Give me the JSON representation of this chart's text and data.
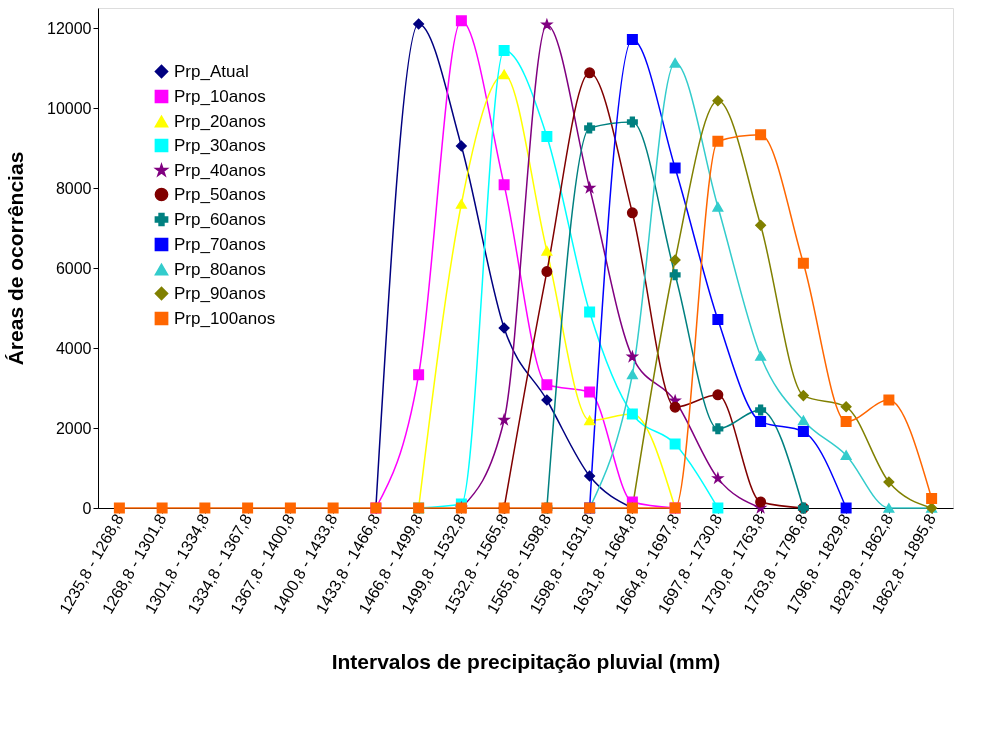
{
  "chart_data": {
    "type": "line",
    "xlabel": "Intervalos de precipitação pluvial (mm)",
    "ylabel": "Áreas de ocorrências",
    "categories": [
      "1235,8 - 1268,8",
      "1268,8 - 1301,8",
      "1301,8 - 1334,8",
      "1334,8 - 1367,8",
      "1367,8 - 1400,8",
      "1400,8 - 1433,8",
      "1433,8 - 1466,8",
      "1466,8 - 1499,8",
      "1499,8 - 1532,8",
      "1532,8 - 1565,8",
      "1565,8 - 1598,8",
      "1598,8 - 1631,8",
      "1631,8 - 1664,8",
      "1664,8 - 1697,8",
      "1697,8 - 1730,8",
      "1730,8 - 1763,8",
      "1763,8 - 1796,8",
      "1796,8 - 1829,8",
      "1829,8 - 1862,8",
      "1862,8 - 1895,8"
    ],
    "ylim": [
      0,
      12500
    ],
    "yticks": [
      0,
      2000,
      4000,
      6000,
      8000,
      10000,
      12000
    ],
    "grid": false,
    "legend": "top left",
    "line_style": "solid",
    "series": [
      {
        "name": "Prp_Atual",
        "color": "#000080",
        "marker": "diamond",
        "values": [
          null,
          null,
          null,
          null,
          null,
          null,
          0,
          12100,
          9050,
          4500,
          2700,
          800,
          0,
          null,
          null,
          null,
          null,
          null,
          null,
          null
        ]
      },
      {
        "name": "Prp_10anos",
        "color": "#ff00ff",
        "marker": "square",
        "values": [
          null,
          null,
          null,
          null,
          null,
          null,
          0,
          3330,
          12180,
          8080,
          3080,
          2900,
          150,
          0,
          null,
          null,
          null,
          null,
          null,
          null
        ]
      },
      {
        "name": "Prp_20anos",
        "color": "#ffff00",
        "marker": "triangle",
        "values": [
          null,
          null,
          null,
          null,
          null,
          null,
          null,
          0,
          7600,
          10840,
          6430,
          2190,
          2350,
          0,
          null,
          null,
          null,
          null,
          null,
          null
        ]
      },
      {
        "name": "Prp_30anos",
        "color": "#00ffff",
        "marker": "square",
        "values": [
          null,
          null,
          null,
          null,
          null,
          null,
          null,
          0,
          100,
          11440,
          9290,
          4900,
          2350,
          1600,
          0,
          null,
          null,
          null,
          null,
          null
        ]
      },
      {
        "name": "Prp_40anos",
        "color": "#800080",
        "marker": "star",
        "values": [
          null,
          null,
          null,
          null,
          null,
          null,
          null,
          null,
          0,
          2200,
          12080,
          8000,
          3780,
          2680,
          740,
          0,
          null,
          null,
          null,
          null
        ]
      },
      {
        "name": "Prp_50anos",
        "color": "#800000",
        "marker": "circle",
        "values": [
          null,
          null,
          null,
          null,
          null,
          null,
          null,
          null,
          null,
          0,
          5910,
          10880,
          7380,
          2520,
          2830,
          150,
          0,
          null,
          null,
          null
        ]
      },
      {
        "name": "Prp_60anos",
        "color": "#008080",
        "marker": "cross",
        "values": [
          null,
          null,
          null,
          null,
          null,
          null,
          null,
          null,
          null,
          null,
          0,
          9500,
          9650,
          5830,
          1980,
          2450,
          0,
          null,
          null,
          null
        ]
      },
      {
        "name": "Prp_70anos",
        "color": "#0000ff",
        "marker": "square",
        "values": [
          null,
          null,
          null,
          null,
          null,
          null,
          null,
          null,
          null,
          null,
          null,
          0,
          11710,
          8500,
          4710,
          2160,
          1910,
          0,
          null,
          null
        ]
      },
      {
        "name": "Prp_80anos",
        "color": "#33cccc",
        "marker": "triangle",
        "values": [
          null,
          null,
          null,
          null,
          null,
          null,
          null,
          null,
          null,
          null,
          null,
          0,
          3340,
          11130,
          7530,
          3800,
          2190,
          1320,
          0,
          0
        ]
      },
      {
        "name": "Prp_90anos",
        "color": "#808000",
        "marker": "diamond",
        "values": [
          null,
          null,
          null,
          null,
          null,
          null,
          null,
          null,
          null,
          null,
          null,
          null,
          0,
          6200,
          10180,
          7070,
          2810,
          2530,
          650,
          0
        ]
      },
      {
        "name": "Prp_100anos",
        "color": "#ff6600",
        "marker": "square",
        "values": [
          0,
          0,
          0,
          0,
          0,
          0,
          0,
          0,
          0,
          0,
          0,
          0,
          0,
          0,
          9170,
          9330,
          6120,
          2160,
          2700,
          240
        ]
      }
    ]
  }
}
